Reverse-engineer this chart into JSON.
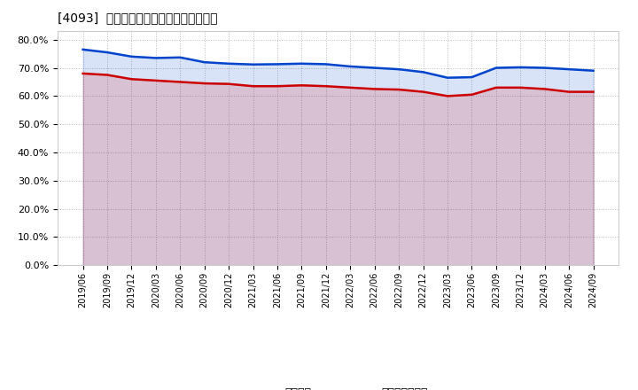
{
  "title_display": "[4093]  固定比率、固定長期適合率の推移",
  "x_labels": [
    "2019/06",
    "2019/09",
    "2019/12",
    "2020/03",
    "2020/06",
    "2020/09",
    "2020/12",
    "2021/03",
    "2021/06",
    "2021/09",
    "2021/12",
    "2022/03",
    "2022/06",
    "2022/09",
    "2022/12",
    "2023/03",
    "2023/06",
    "2023/09",
    "2023/12",
    "2024/03",
    "2024/06",
    "2024/09"
  ],
  "fixed_ratio": [
    76.5,
    75.5,
    74.0,
    73.5,
    73.7,
    72.0,
    71.5,
    71.2,
    71.3,
    71.5,
    71.3,
    70.5,
    70.0,
    69.5,
    68.5,
    66.5,
    66.7,
    70.0,
    70.2,
    70.0,
    69.5,
    69.0
  ],
  "fixed_long_term_ratio": [
    68.0,
    67.5,
    66.0,
    65.5,
    65.0,
    64.5,
    64.3,
    63.5,
    63.5,
    63.8,
    63.5,
    63.0,
    62.5,
    62.3,
    61.5,
    60.0,
    60.5,
    63.0,
    63.0,
    62.5,
    61.5,
    61.5
  ],
  "blue_color": "#0044CC",
  "red_color": "#CC0000",
  "background_color": "#FFFFFF",
  "plot_bg_color": "#FFFFFF",
  "grid_color": "#AAAAAA",
  "ylim": [
    0.0,
    83.0
  ],
  "yticks": [
    0.0,
    10.0,
    20.0,
    30.0,
    40.0,
    50.0,
    60.0,
    70.0,
    80.0
  ],
  "legend_fixed": "固定比率",
  "legend_long": "固定長期適合率"
}
